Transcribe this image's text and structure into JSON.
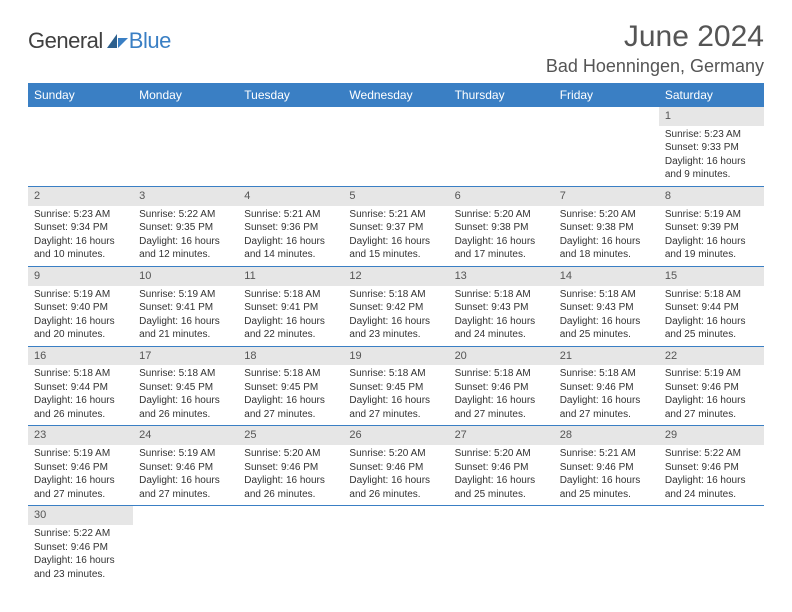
{
  "brand": {
    "part1": "General",
    "part2": "Blue"
  },
  "title": "June 2024",
  "location": "Bad Hoenningen, Germany",
  "colors": {
    "accent": "#3a7fc4",
    "header_bg": "#3a7fc4",
    "header_text": "#ffffff",
    "daynum_bg": "#e6e6e6",
    "text": "#333333",
    "border": "#3a7fc4"
  },
  "weekdays": [
    "Sunday",
    "Monday",
    "Tuesday",
    "Wednesday",
    "Thursday",
    "Friday",
    "Saturday"
  ],
  "first_weekday_index": 6,
  "days": [
    {
      "n": 1,
      "sunrise": "5:23 AM",
      "sunset": "9:33 PM",
      "daylight": "16 hours and 9 minutes."
    },
    {
      "n": 2,
      "sunrise": "5:23 AM",
      "sunset": "9:34 PM",
      "daylight": "16 hours and 10 minutes."
    },
    {
      "n": 3,
      "sunrise": "5:22 AM",
      "sunset": "9:35 PM",
      "daylight": "16 hours and 12 minutes."
    },
    {
      "n": 4,
      "sunrise": "5:21 AM",
      "sunset": "9:36 PM",
      "daylight": "16 hours and 14 minutes."
    },
    {
      "n": 5,
      "sunrise": "5:21 AM",
      "sunset": "9:37 PM",
      "daylight": "16 hours and 15 minutes."
    },
    {
      "n": 6,
      "sunrise": "5:20 AM",
      "sunset": "9:38 PM",
      "daylight": "16 hours and 17 minutes."
    },
    {
      "n": 7,
      "sunrise": "5:20 AM",
      "sunset": "9:38 PM",
      "daylight": "16 hours and 18 minutes."
    },
    {
      "n": 8,
      "sunrise": "5:19 AM",
      "sunset": "9:39 PM",
      "daylight": "16 hours and 19 minutes."
    },
    {
      "n": 9,
      "sunrise": "5:19 AM",
      "sunset": "9:40 PM",
      "daylight": "16 hours and 20 minutes."
    },
    {
      "n": 10,
      "sunrise": "5:19 AM",
      "sunset": "9:41 PM",
      "daylight": "16 hours and 21 minutes."
    },
    {
      "n": 11,
      "sunrise": "5:18 AM",
      "sunset": "9:41 PM",
      "daylight": "16 hours and 22 minutes."
    },
    {
      "n": 12,
      "sunrise": "5:18 AM",
      "sunset": "9:42 PM",
      "daylight": "16 hours and 23 minutes."
    },
    {
      "n": 13,
      "sunrise": "5:18 AM",
      "sunset": "9:43 PM",
      "daylight": "16 hours and 24 minutes."
    },
    {
      "n": 14,
      "sunrise": "5:18 AM",
      "sunset": "9:43 PM",
      "daylight": "16 hours and 25 minutes."
    },
    {
      "n": 15,
      "sunrise": "5:18 AM",
      "sunset": "9:44 PM",
      "daylight": "16 hours and 25 minutes."
    },
    {
      "n": 16,
      "sunrise": "5:18 AM",
      "sunset": "9:44 PM",
      "daylight": "16 hours and 26 minutes."
    },
    {
      "n": 17,
      "sunrise": "5:18 AM",
      "sunset": "9:45 PM",
      "daylight": "16 hours and 26 minutes."
    },
    {
      "n": 18,
      "sunrise": "5:18 AM",
      "sunset": "9:45 PM",
      "daylight": "16 hours and 27 minutes."
    },
    {
      "n": 19,
      "sunrise": "5:18 AM",
      "sunset": "9:45 PM",
      "daylight": "16 hours and 27 minutes."
    },
    {
      "n": 20,
      "sunrise": "5:18 AM",
      "sunset": "9:46 PM",
      "daylight": "16 hours and 27 minutes."
    },
    {
      "n": 21,
      "sunrise": "5:18 AM",
      "sunset": "9:46 PM",
      "daylight": "16 hours and 27 minutes."
    },
    {
      "n": 22,
      "sunrise": "5:19 AM",
      "sunset": "9:46 PM",
      "daylight": "16 hours and 27 minutes."
    },
    {
      "n": 23,
      "sunrise": "5:19 AM",
      "sunset": "9:46 PM",
      "daylight": "16 hours and 27 minutes."
    },
    {
      "n": 24,
      "sunrise": "5:19 AM",
      "sunset": "9:46 PM",
      "daylight": "16 hours and 27 minutes."
    },
    {
      "n": 25,
      "sunrise": "5:20 AM",
      "sunset": "9:46 PM",
      "daylight": "16 hours and 26 minutes."
    },
    {
      "n": 26,
      "sunrise": "5:20 AM",
      "sunset": "9:46 PM",
      "daylight": "16 hours and 26 minutes."
    },
    {
      "n": 27,
      "sunrise": "5:20 AM",
      "sunset": "9:46 PM",
      "daylight": "16 hours and 25 minutes."
    },
    {
      "n": 28,
      "sunrise": "5:21 AM",
      "sunset": "9:46 PM",
      "daylight": "16 hours and 25 minutes."
    },
    {
      "n": 29,
      "sunrise": "5:22 AM",
      "sunset": "9:46 PM",
      "daylight": "16 hours and 24 minutes."
    },
    {
      "n": 30,
      "sunrise": "5:22 AM",
      "sunset": "9:46 PM",
      "daylight": "16 hours and 23 minutes."
    }
  ],
  "labels": {
    "sunrise": "Sunrise:",
    "sunset": "Sunset:",
    "daylight": "Daylight:"
  }
}
